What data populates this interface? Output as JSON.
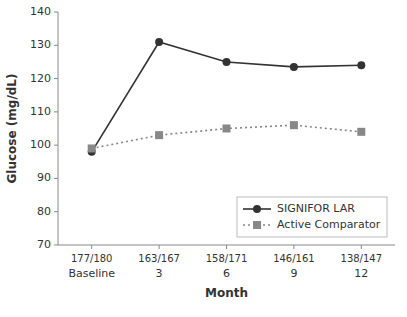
{
  "chart_data": {
    "type": "line",
    "categories": [
      "Baseline",
      "3",
      "6",
      "9",
      "12"
    ],
    "annotations": [
      "177/180",
      "163/167",
      "158/171",
      "146/161",
      "138/147"
    ],
    "x_label": "Month",
    "y_label": "Glucose (mg/dL)",
    "ylim": [
      70,
      140
    ],
    "yticks": [
      70,
      80,
      90,
      100,
      110,
      120,
      130,
      140
    ],
    "grid": false,
    "legend": "lower right",
    "series": [
      {
        "name": "SIGNIFOR LAR",
        "color": "#333333",
        "marker": "circle",
        "line_style": "solid",
        "values": [
          98.0,
          131.0,
          125.0,
          123.5,
          124.0
        ]
      },
      {
        "name": "Active Comparator",
        "color": "#888888",
        "marker": "square",
        "line_style": "dotted",
        "values": [
          99.0,
          103.0,
          105.0,
          106.0,
          104.0
        ]
      }
    ]
  }
}
